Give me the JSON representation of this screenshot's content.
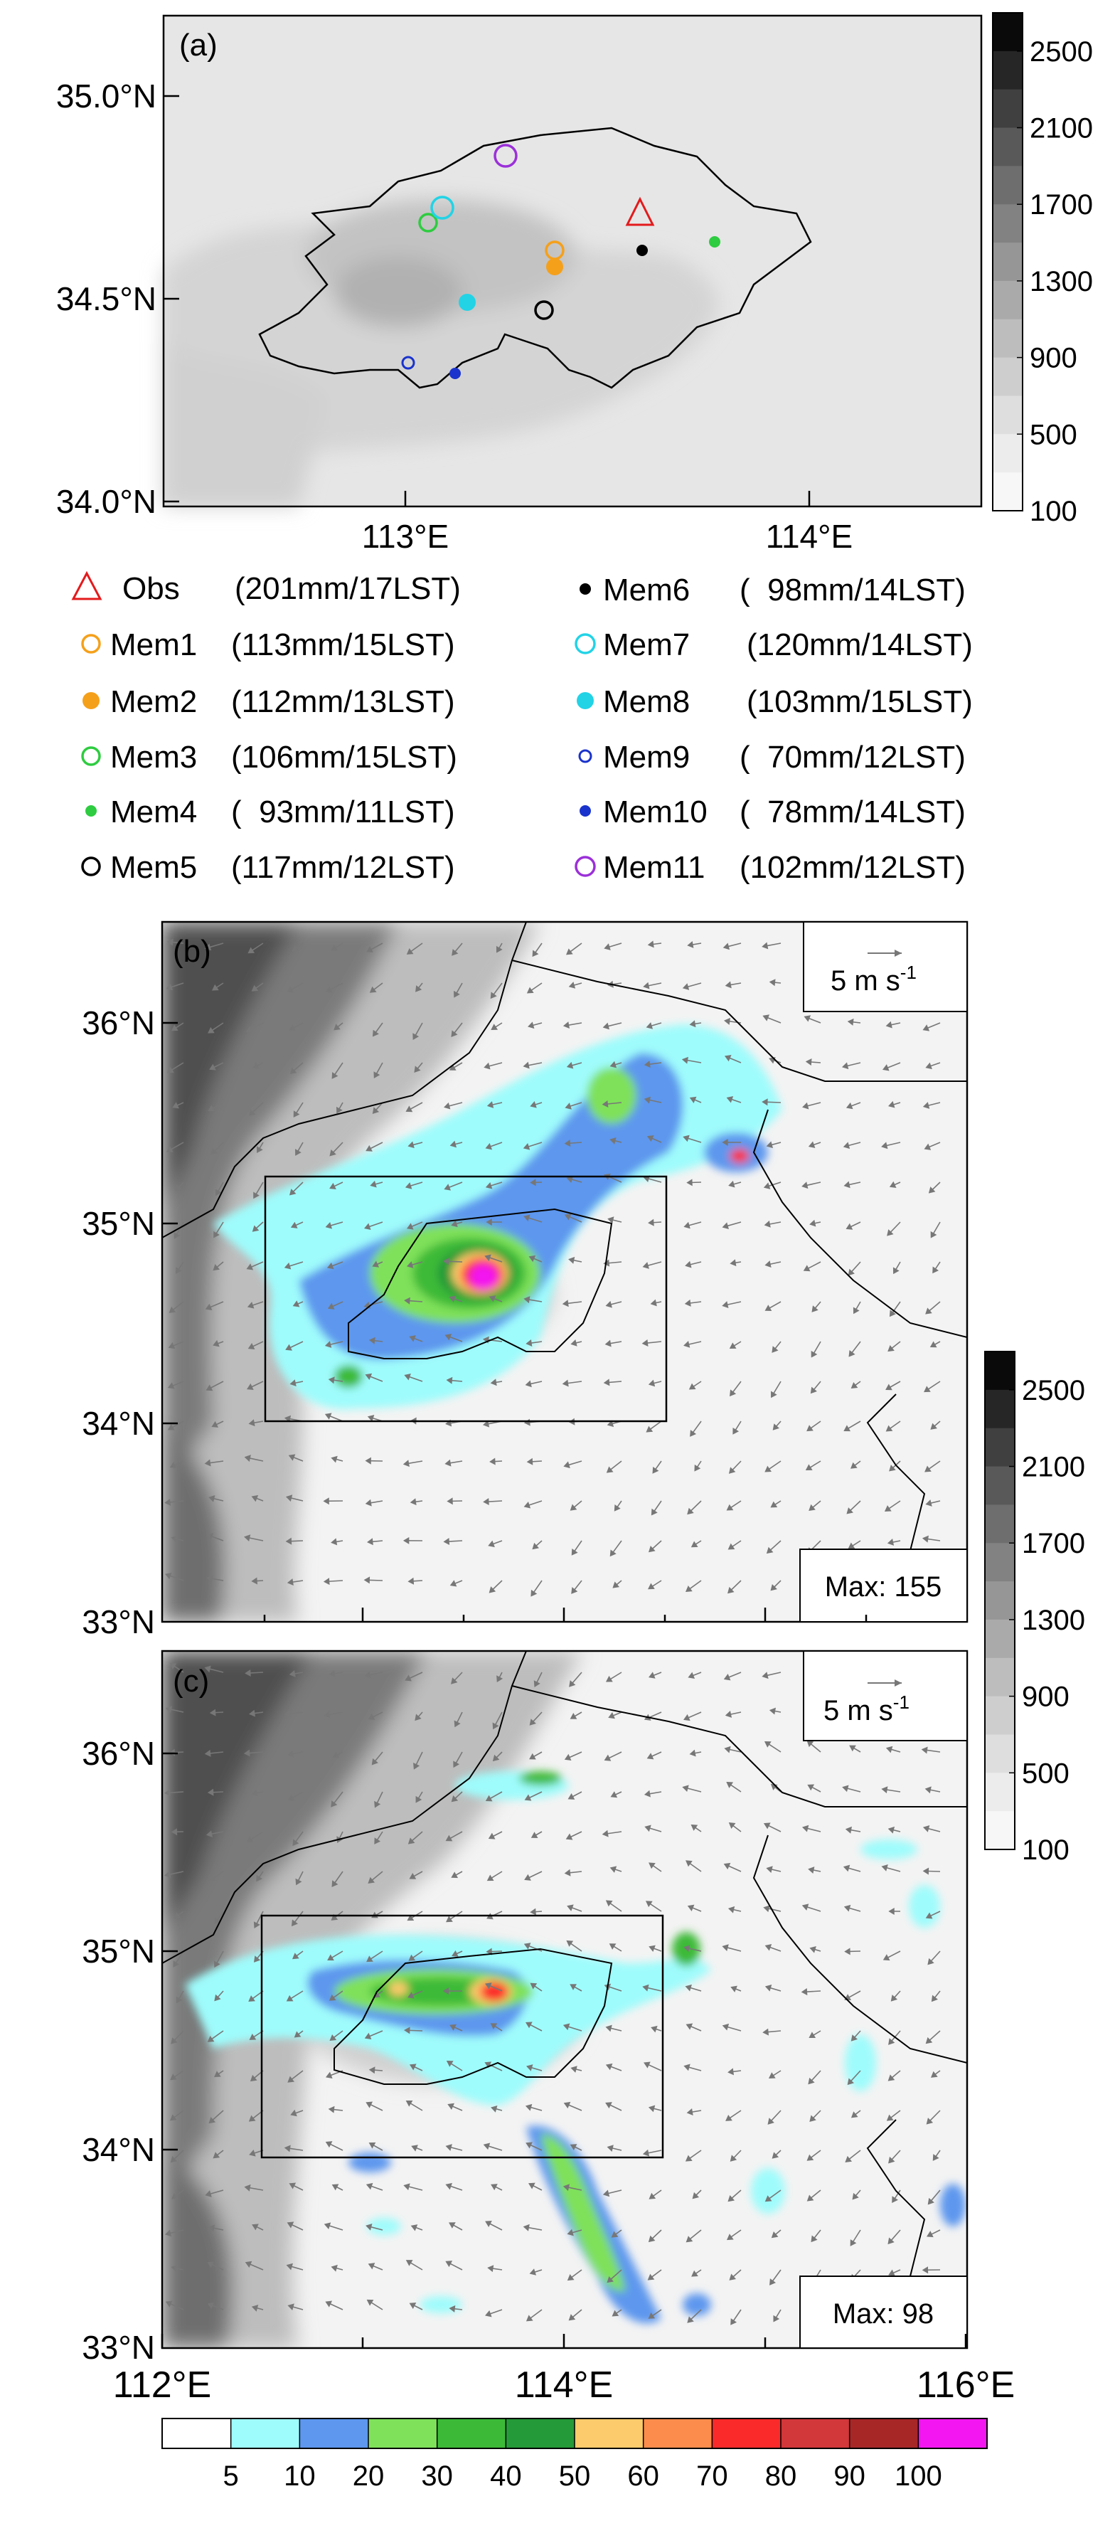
{
  "panel_a": {
    "label": "(a)",
    "y_ticks": [
      "35.0°N",
      "34.5°N",
      "34.0°N"
    ],
    "x_ticks": [
      "113°E",
      "114°E"
    ],
    "legend_left": [
      {
        "name": "Obs",
        "value": "(201mm/17LST)",
        "marker": "triangle",
        "color": "#e31a1c"
      },
      {
        "name": "Mem1",
        "value": "(113mm/15LST)",
        "marker": "open-circle",
        "color": "#f5a01a"
      },
      {
        "name": "Mem2",
        "value": "(112mm/13LST)",
        "marker": "filled-circle",
        "color": "#f5a01a"
      },
      {
        "name": "Mem3",
        "value": "(106mm/15LST)",
        "marker": "open-circle",
        "color": "#2ecc40"
      },
      {
        "name": "Mem4",
        "value": "(  93mm/11LST)",
        "marker": "filled-small",
        "color": "#2ecc40"
      },
      {
        "name": "Mem5",
        "value": "(117mm/12LST)",
        "marker": "open-circle",
        "color": "#000000"
      }
    ],
    "legend_right": [
      {
        "name": "Mem6",
        "value": "(  98mm/14LST)",
        "marker": "filled-small",
        "color": "#000000"
      },
      {
        "name": "Mem7",
        "value": "(120mm/14LST)",
        "marker": "open-circle",
        "color": "#22d3e6"
      },
      {
        "name": "Mem8",
        "value": "(103mm/15LST)",
        "marker": "filled-circle",
        "color": "#22d3e6"
      },
      {
        "name": "Mem9",
        "value": "(  70mm/12LST)",
        "marker": "open-small",
        "color": "#1a33cc"
      },
      {
        "name": "Mem10",
        "value": "(  78mm/14LST)",
        "marker": "filled-small",
        "color": "#1a33cc"
      },
      {
        "name": "Mem11",
        "value": "(102mm/12LST)",
        "marker": "open-circle",
        "color": "#9b30d9"
      }
    ]
  },
  "panel_b": {
    "label": "(b)",
    "y_ticks": [
      "36°N",
      "35°N",
      "34°N",
      "33°N"
    ],
    "vector_ref": "5 m s",
    "vector_ref_exp": "-1",
    "max_label": "Max: 155"
  },
  "panel_c": {
    "label": "(c)",
    "y_ticks": [
      "36°N",
      "35°N",
      "34°N",
      "33°N"
    ],
    "vector_ref": "5 m s",
    "vector_ref_exp": "-1",
    "max_label": "Max: 98"
  },
  "x_ticks_bottom": [
    "112°E",
    "114°E",
    "116°E"
  ],
  "terrain_colorbar": {
    "labels": [
      "2500",
      "2100",
      "1700",
      "1300",
      "900",
      "500",
      "100"
    ],
    "colors": [
      "#0a0a0a",
      "#262626",
      "#404040",
      "#595959",
      "#6e6e6e",
      "#828282",
      "#969696",
      "#aaaaaa",
      "#bdbdbd",
      "#cecece",
      "#dedede",
      "#ececec",
      "#f7f7f7"
    ]
  },
  "precip_colorbar": {
    "labels": [
      "5",
      "10",
      "20",
      "30",
      "40",
      "50",
      "60",
      "70",
      "80",
      "90",
      "100"
    ],
    "colors": [
      "#ffffff",
      "#9ffcfc",
      "#5d97ee",
      "#7fe15a",
      "#3cba37",
      "#249a38",
      "#fccb6b",
      "#fb8c4c",
      "#fb2a2a",
      "#d2373a",
      "#a72727",
      "#f316f0"
    ]
  }
}
